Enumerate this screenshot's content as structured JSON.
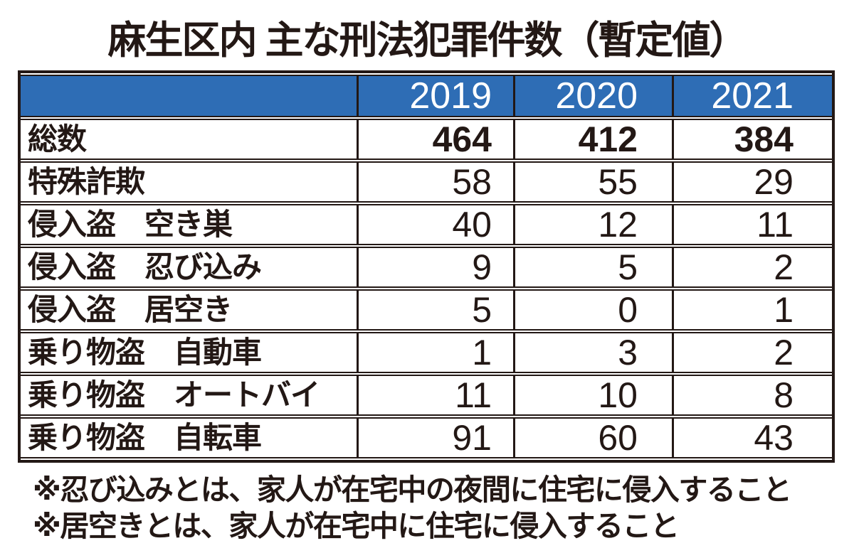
{
  "title": "麻生区内 主な刑法犯罪件数（暫定値）",
  "table": {
    "year_headers": [
      "2019",
      "2020",
      "2021"
    ],
    "rows": [
      {
        "label": "総数",
        "values": [
          "464",
          "412",
          "384"
        ]
      },
      {
        "label": "特殊詐欺",
        "values": [
          "58",
          "55",
          "29"
        ]
      },
      {
        "label": "侵入盗　空き巣",
        "values": [
          "40",
          "12",
          "11"
        ]
      },
      {
        "label": "侵入盗　忍び込み",
        "values": [
          "9",
          "5",
          "2"
        ]
      },
      {
        "label": "侵入盗　居空き",
        "values": [
          "5",
          "0",
          "1"
        ]
      },
      {
        "label": "乗り物盗　自動車",
        "values": [
          "1",
          "3",
          "2"
        ]
      },
      {
        "label": "乗り物盗　オートバイ",
        "values": [
          "11",
          "10",
          "8"
        ]
      },
      {
        "label": "乗り物盗　自転車",
        "values": [
          "91",
          "60",
          "43"
        ]
      }
    ]
  },
  "footnotes": [
    "※忍び込みとは、家人が在宅中の夜間に住宅に侵入すること",
    "※居空きとは、家人が在宅中に住宅に侵入すること"
  ],
  "colors": {
    "header_bg": "#2e6db5",
    "header_text": "#ffffff",
    "text": "#231815",
    "border": "#231815",
    "background": "#ffffff"
  },
  "chart_data": {
    "type": "table",
    "title": "麻生区内 主な刑法犯罪件数（暫定値）",
    "categories": [
      "2019",
      "2020",
      "2021"
    ],
    "series": [
      {
        "name": "総数",
        "values": [
          464,
          412,
          384
        ]
      },
      {
        "name": "特殊詐欺",
        "values": [
          58,
          55,
          29
        ]
      },
      {
        "name": "侵入盗　空き巣",
        "values": [
          40,
          12,
          11
        ]
      },
      {
        "name": "侵入盗　忍び込み",
        "values": [
          9,
          5,
          2
        ]
      },
      {
        "name": "侵入盗　居空き",
        "values": [
          5,
          0,
          1
        ]
      },
      {
        "name": "乗り物盗　自動車",
        "values": [
          1,
          3,
          2
        ]
      },
      {
        "name": "乗り物盗　オートバイ",
        "values": [
          11,
          10,
          8
        ]
      },
      {
        "name": "乗り物盗　自転車",
        "values": [
          91,
          60,
          43
        ]
      }
    ],
    "annotations": [
      "※忍び込みとは、家人が在宅中の夜間に住宅に侵入すること",
      "※居空きとは、家人が在宅中に住宅に侵入すること"
    ]
  }
}
